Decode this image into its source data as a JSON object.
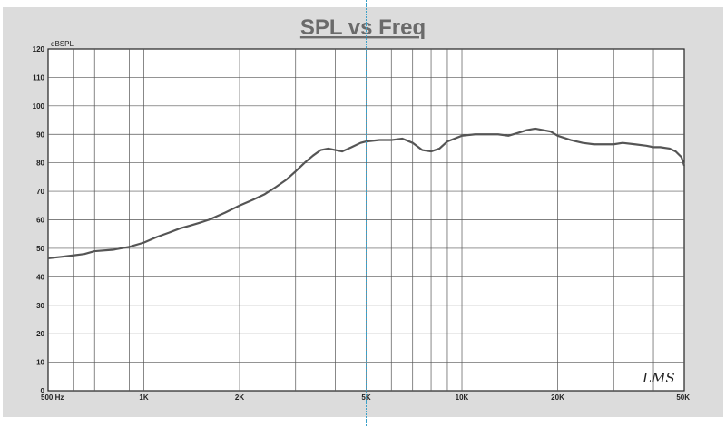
{
  "chart_data": {
    "type": "line",
    "title": "SPL vs Freq",
    "ylabel": "dBSPL",
    "xlabel": "",
    "x_scale": "log",
    "xlim": [
      500,
      50000
    ],
    "ylim": [
      0,
      120
    ],
    "grid": true,
    "x_tick_labels": [
      {
        "value": 500,
        "label": "500  Hz"
      },
      {
        "value": 1000,
        "label": "1K"
      },
      {
        "value": 2000,
        "label": "2K"
      },
      {
        "value": 5000,
        "label": "5K"
      },
      {
        "value": 10000,
        "label": "10K"
      },
      {
        "value": 20000,
        "label": "20K"
      },
      {
        "value": 50000,
        "label": "50K"
      }
    ],
    "y_ticks": [
      0,
      10,
      20,
      30,
      40,
      50,
      60,
      70,
      80,
      90,
      100,
      110,
      120
    ],
    "marker_x": 5000,
    "watermark": "LMS",
    "series": [
      {
        "points": [
          [
            500,
            46.5
          ],
          [
            550,
            47
          ],
          [
            600,
            47.5
          ],
          [
            650,
            48
          ],
          [
            700,
            49
          ],
          [
            800,
            49.5
          ],
          [
            900,
            50.5
          ],
          [
            1000,
            52
          ],
          [
            1100,
            54
          ],
          [
            1200,
            55.5
          ],
          [
            1300,
            57
          ],
          [
            1400,
            58
          ],
          [
            1500,
            59
          ],
          [
            1600,
            60
          ],
          [
            1800,
            62.5
          ],
          [
            2000,
            65
          ],
          [
            2200,
            67
          ],
          [
            2400,
            69
          ],
          [
            2600,
            71.5
          ],
          [
            2800,
            74
          ],
          [
            3000,
            77
          ],
          [
            3200,
            80
          ],
          [
            3400,
            82.5
          ],
          [
            3600,
            84.5
          ],
          [
            3800,
            85
          ],
          [
            4000,
            84.5
          ],
          [
            4200,
            84
          ],
          [
            4500,
            85.5
          ],
          [
            4800,
            87
          ],
          [
            5000,
            87.5
          ],
          [
            5500,
            88
          ],
          [
            6000,
            88
          ],
          [
            6500,
            88.5
          ],
          [
            7000,
            87
          ],
          [
            7500,
            84.5
          ],
          [
            8000,
            84
          ],
          [
            8500,
            85
          ],
          [
            9000,
            87.5
          ],
          [
            10000,
            89.5
          ],
          [
            11000,
            90
          ],
          [
            12000,
            90
          ],
          [
            13000,
            90
          ],
          [
            14000,
            89.5
          ],
          [
            15000,
            90.5
          ],
          [
            16000,
            91.5
          ],
          [
            17000,
            92
          ],
          [
            18000,
            91.5
          ],
          [
            19000,
            91
          ],
          [
            20000,
            89.5
          ],
          [
            22000,
            88
          ],
          [
            24000,
            87
          ],
          [
            26000,
            86.5
          ],
          [
            28000,
            86.5
          ],
          [
            30000,
            86.5
          ],
          [
            32000,
            87
          ],
          [
            35000,
            86.5
          ],
          [
            38000,
            86
          ],
          [
            40000,
            85.5
          ],
          [
            42000,
            85.5
          ],
          [
            45000,
            85
          ],
          [
            47000,
            84
          ],
          [
            49000,
            82
          ],
          [
            50000,
            79
          ]
        ]
      }
    ]
  }
}
